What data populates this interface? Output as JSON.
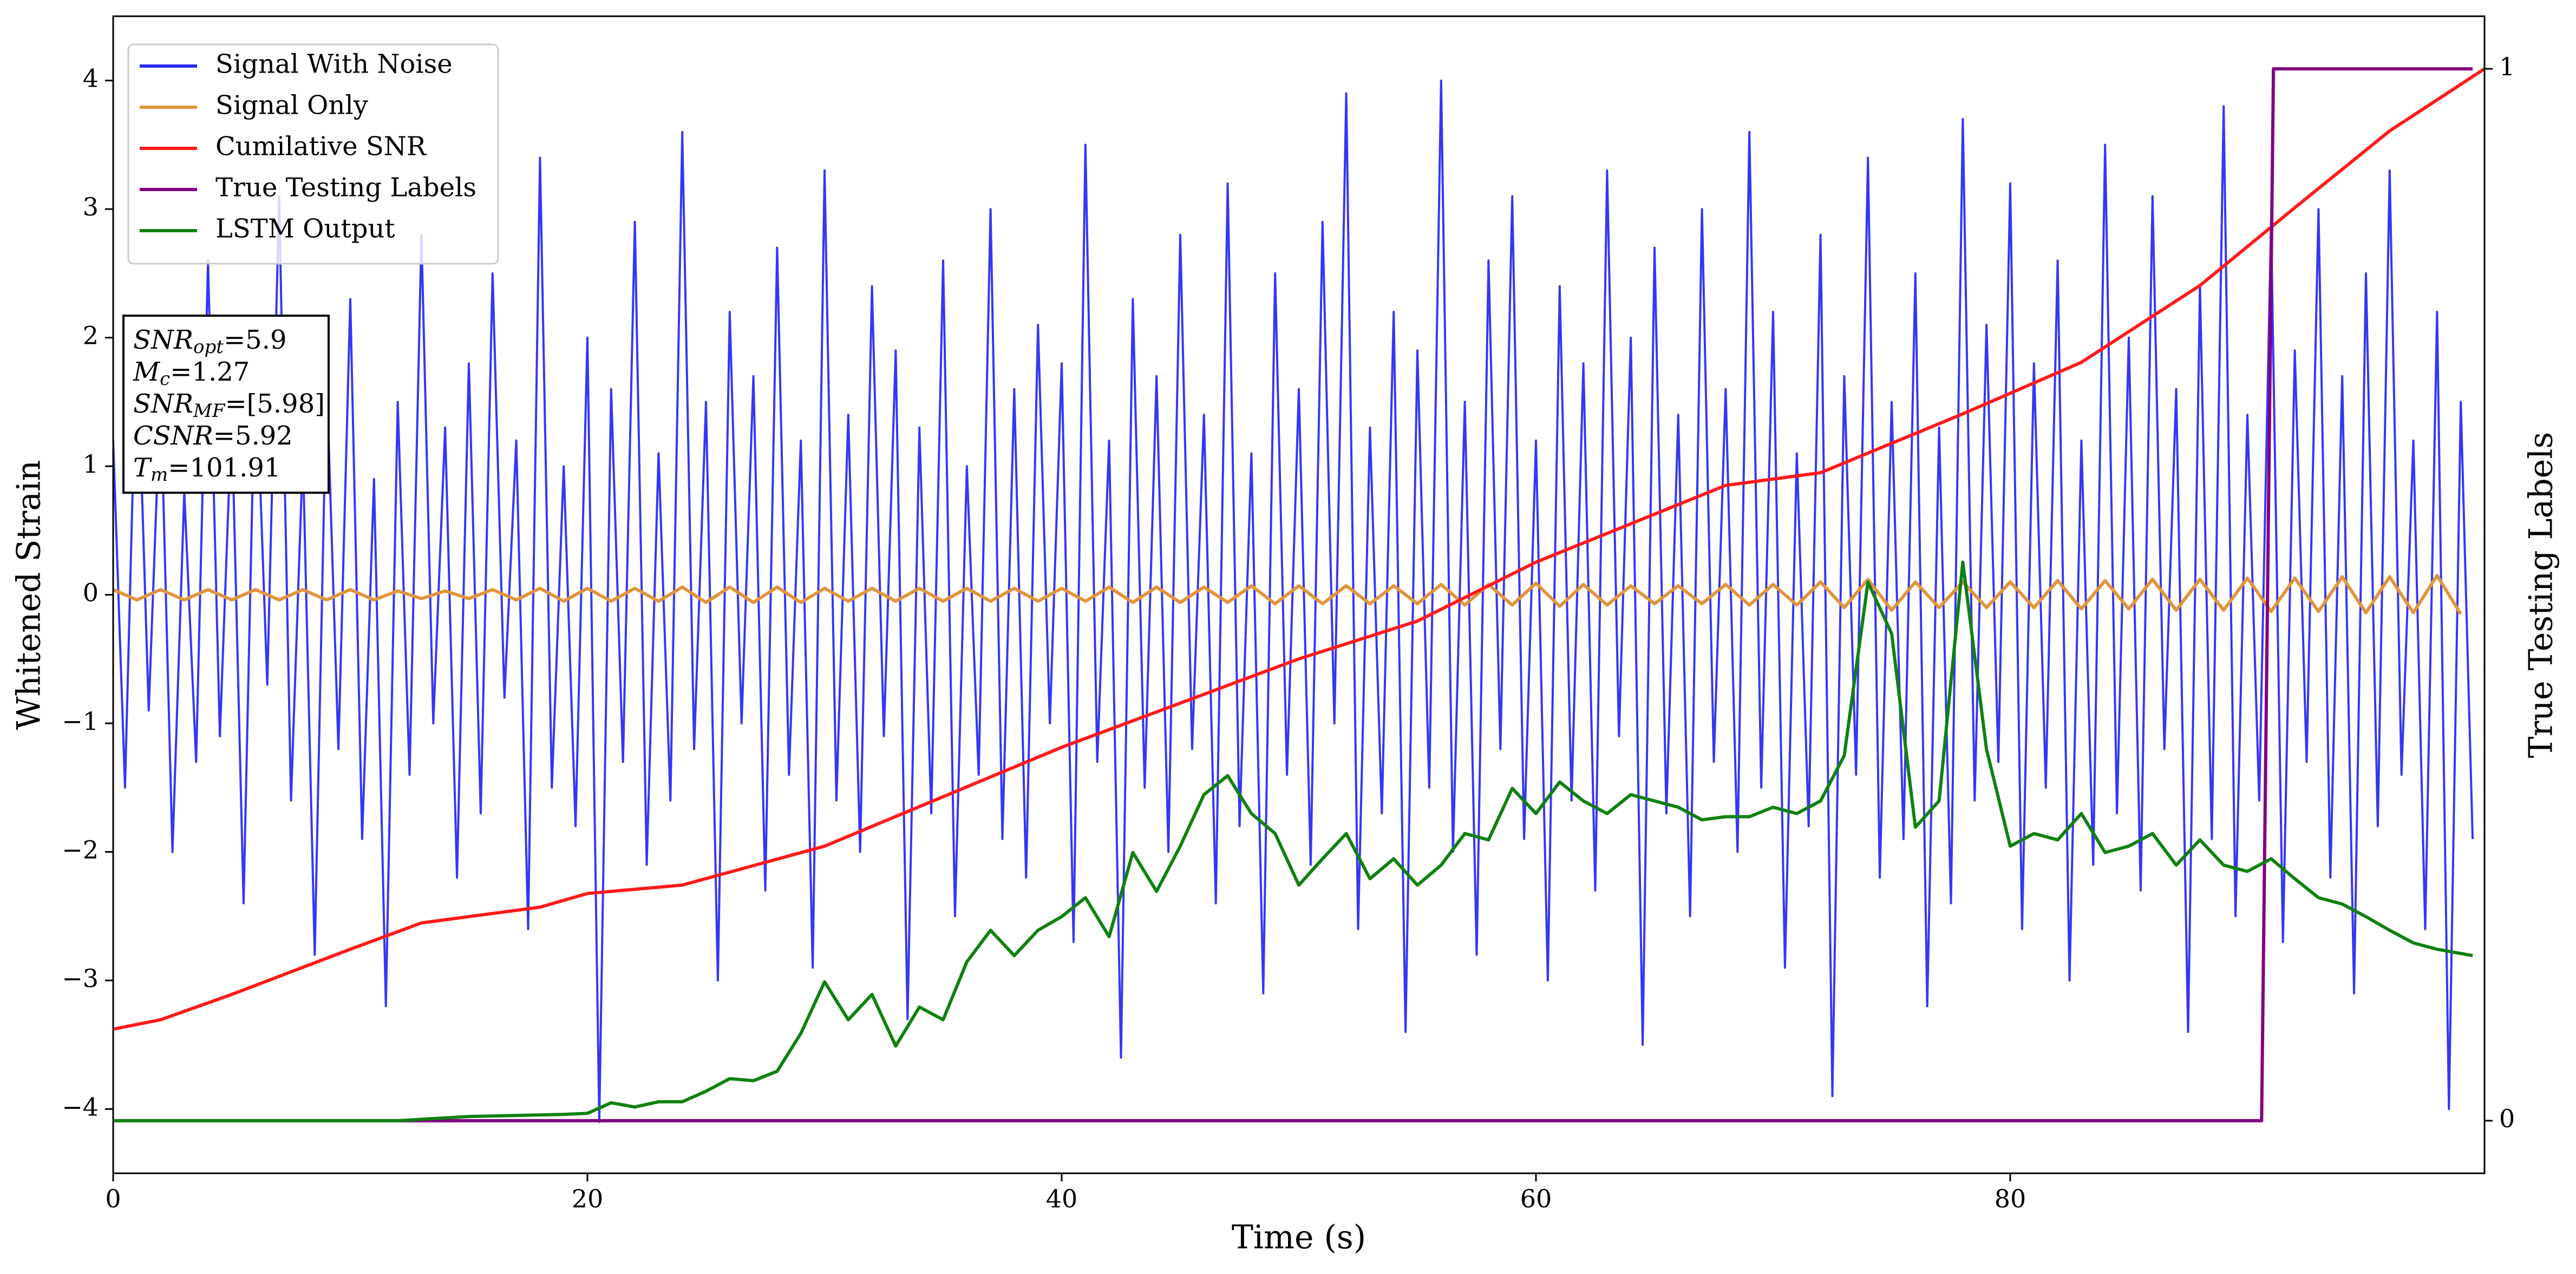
{
  "chart_data": {
    "type": "line",
    "xlabel": "Time (s)",
    "ylabel": "Whitened Strain",
    "y2label": "True Testing Labels",
    "xlim": [
      0,
      100
    ],
    "xticks": [
      0,
      20,
      40,
      60,
      80
    ],
    "ylim": [
      -4.5,
      4.5
    ],
    "yticks": [
      {
        "value": -4,
        "label": "−4"
      },
      {
        "value": -3,
        "label": "−3"
      },
      {
        "value": -2,
        "label": "−2"
      },
      {
        "value": -1,
        "label": "−1"
      },
      0,
      1,
      2,
      3,
      4
    ],
    "y2lim": [
      -0.05,
      1.05
    ],
    "y2ticks": [
      0,
      1
    ],
    "legend": "upper left",
    "annotations": [
      {
        "name": "SNR",
        "sub": "opt",
        "text": "=5.9"
      },
      {
        "name": "M",
        "sub": "c",
        "text": "=1.27"
      },
      {
        "name": "SNR",
        "sub": "MF",
        "text": "=[5.98]"
      },
      {
        "name": "CSNR",
        "text": "=5.92"
      },
      {
        "name": "T",
        "sub": "m",
        "text": "=101.91"
      }
    ],
    "series": [
      {
        "name": "Signal With Noise",
        "color": "#2b2bf5",
        "axis": "y",
        "x": [
          0,
          0.5,
          1,
          1.5,
          2,
          2.5,
          3,
          3.5,
          4,
          4.5,
          5,
          5.5,
          6,
          6.5,
          7,
          7.5,
          8,
          8.5,
          9,
          9.5,
          10,
          10.5,
          11,
          11.5,
          12,
          12.5,
          13,
          13.5,
          14,
          14.5,
          15,
          15.5,
          16,
          16.5,
          17,
          17.5,
          18,
          18.5,
          19,
          19.5,
          20,
          20.5,
          21,
          21.5,
          22,
          22.5,
          23,
          23.5,
          24,
          24.5,
          25,
          25.5,
          26,
          26.5,
          27,
          27.5,
          28,
          28.5,
          29,
          29.5,
          30,
          30.5,
          31,
          31.5,
          32,
          32.5,
          33,
          33.5,
          34,
          34.5,
          35,
          35.5,
          36,
          36.5,
          37,
          37.5,
          38,
          38.5,
          39,
          39.5,
          40,
          40.5,
          41,
          41.5,
          42,
          42.5,
          43,
          43.5,
          44,
          44.5,
          45,
          45.5,
          46,
          46.5,
          47,
          47.5,
          48,
          48.5,
          49,
          49.5,
          50,
          50.5,
          51,
          51.5,
          52,
          52.5,
          53,
          53.5,
          54,
          54.5,
          55,
          55.5,
          56,
          56.5,
          57,
          57.5,
          58,
          58.5,
          59,
          59.5,
          60,
          60.5,
          61,
          61.5,
          62,
          62.5,
          63,
          63.5,
          64,
          64.5,
          65,
          65.5,
          66,
          66.5,
          67,
          67.5,
          68,
          68.5,
          69,
          69.5,
          70,
          70.5,
          71,
          71.5,
          72,
          72.5,
          73,
          73.5,
          74,
          74.5,
          75,
          75.5,
          76,
          76.5,
          77,
          77.5,
          78,
          78.5,
          79,
          79.5,
          80,
          80.5,
          81,
          81.5,
          82,
          82.5,
          83,
          83.5,
          84,
          84.5,
          85,
          85.5,
          86,
          86.5,
          87,
          87.5,
          88,
          88.5,
          89,
          89.5,
          90,
          90.5,
          91,
          91.5,
          92,
          92.5,
          93,
          93.5,
          94,
          94.5,
          95,
          95.5,
          96,
          96.5,
          97,
          97.5,
          98,
          98.5,
          99,
          99.5
        ],
        "values": [
          1.2,
          -1.5,
          2.1,
          -0.9,
          1.6,
          -2.0,
          0.8,
          -1.3,
          2.6,
          -1.1,
          1.4,
          -2.4,
          1.9,
          -0.7,
          3.1,
          -1.6,
          1.1,
          -2.8,
          1.7,
          -1.2,
          2.3,
          -1.9,
          0.9,
          -3.2,
          1.5,
          -1.4,
          2.8,
          -1.0,
          1.3,
          -2.2,
          1.8,
          -1.7,
          2.5,
          -0.8,
          1.2,
          -2.6,
          3.4,
          -1.5,
          1.0,
          -1.8,
          2.0,
          -4.1,
          1.6,
          -1.3,
          2.9,
          -2.1,
          1.1,
          -1.6,
          3.6,
          -1.2,
          1.5,
          -3.0,
          2.2,
          -1.0,
          1.7,
          -2.3,
          2.7,
          -1.4,
          1.2,
          -2.9,
          3.3,
          -1.6,
          1.4,
          -2.0,
          2.4,
          -1.1,
          1.9,
          -3.3,
          1.3,
          -1.7,
          2.6,
          -2.5,
          1.0,
          -1.4,
          3.0,
          -1.9,
          1.6,
          -2.2,
          2.1,
          -1.0,
          1.8,
          -2.7,
          3.5,
          -1.3,
          1.2,
          -3.6,
          2.3,
          -1.5,
          1.7,
          -2.0,
          2.8,
          -1.2,
          1.4,
          -2.4,
          3.2,
          -1.8,
          1.1,
          -3.1,
          2.5,
          -1.4,
          1.6,
          -2.1,
          2.9,
          -1.0,
          3.9,
          -2.6,
          1.3,
          -1.7,
          2.2,
          -3.4,
          1.9,
          -1.5,
          4.0,
          -2.0,
          1.5,
          -2.8,
          2.6,
          -1.2,
          3.1,
          -1.9,
          1.2,
          -3.0,
          2.4,
          -1.6,
          1.8,
          -2.3,
          3.3,
          -1.1,
          2.0,
          -3.5,
          2.7,
          -1.7,
          1.4,
          -2.5,
          3.0,
          -1.3,
          1.6,
          -2.0,
          3.6,
          -1.5,
          2.2,
          -2.9,
          1.1,
          -1.8,
          2.8,
          -3.9,
          1.7,
          -1.4,
          3.4,
          -2.2,
          1.5,
          -1.9,
          2.5,
          -3.2,
          1.3,
          -2.4,
          3.7,
          -1.6,
          2.1,
          -1.3,
          3.2,
          -2.6,
          1.8,
          -1.5,
          2.6,
          -3.0,
          1.2,
          -2.1,
          3.5,
          -1.7,
          2.0,
          -2.3,
          3.1,
          -1.2,
          1.6,
          -3.4,
          2.4,
          -1.9,
          3.8,
          -2.5,
          1.4,
          -1.6,
          2.9,
          -2.7,
          1.9,
          -1.3,
          3.0,
          -2.2,
          1.7,
          -3.1,
          2.5,
          -1.8,
          3.3,
          -1.4,
          1.2,
          -2.6,
          2.2,
          -4.0,
          1.5,
          -1.9
        ]
      },
      {
        "name": "Signal Only",
        "color": "#e0953a",
        "axis": "y",
        "x": [
          0,
          1,
          2,
          3,
          4,
          5,
          6,
          7,
          8,
          9,
          10,
          11,
          12,
          13,
          14,
          15,
          16,
          17,
          18,
          19,
          20,
          21,
          22,
          23,
          24,
          25,
          26,
          27,
          28,
          29,
          30,
          31,
          32,
          33,
          34,
          35,
          36,
          37,
          38,
          39,
          40,
          41,
          42,
          43,
          44,
          45,
          46,
          47,
          48,
          49,
          50,
          51,
          52,
          53,
          54,
          55,
          56,
          57,
          58,
          59,
          60,
          61,
          62,
          63,
          64,
          65,
          66,
          67,
          68,
          69,
          70,
          71,
          72,
          73,
          74,
          75,
          76,
          77,
          78,
          79,
          80,
          81,
          82,
          83,
          84,
          85,
          86,
          87,
          88,
          89,
          90,
          91,
          92,
          93,
          94,
          95,
          96,
          97,
          98,
          99
        ],
        "values": [
          0.04,
          -0.04,
          0.04,
          -0.04,
          0.04,
          -0.04,
          0.04,
          -0.04,
          0.04,
          -0.04,
          0.04,
          -0.04,
          0.03,
          -0.03,
          0.03,
          -0.03,
          0.04,
          -0.04,
          0.05,
          -0.05,
          0.05,
          -0.05,
          0.05,
          -0.05,
          0.06,
          -0.06,
          0.06,
          -0.06,
          0.06,
          -0.06,
          0.05,
          -0.05,
          0.05,
          -0.05,
          0.05,
          -0.05,
          0.05,
          -0.05,
          0.05,
          -0.05,
          0.05,
          -0.05,
          0.06,
          -0.06,
          0.06,
          -0.06,
          0.06,
          -0.06,
          0.07,
          -0.07,
          0.07,
          -0.07,
          0.07,
          -0.07,
          0.07,
          -0.07,
          0.08,
          -0.08,
          0.08,
          -0.08,
          0.09,
          -0.09,
          0.08,
          -0.08,
          0.07,
          -0.07,
          0.07,
          -0.07,
          0.08,
          -0.08,
          0.08,
          -0.08,
          0.1,
          -0.1,
          0.12,
          -0.12,
          0.1,
          -0.1,
          0.1,
          -0.1,
          0.1,
          -0.1,
          0.11,
          -0.11,
          0.11,
          -0.11,
          0.12,
          -0.12,
          0.12,
          -0.12,
          0.13,
          -0.13,
          0.13,
          -0.13,
          0.14,
          -0.14,
          0.14,
          -0.14,
          0.15,
          -0.15
        ]
      },
      {
        "name": "Cumilative SNR",
        "color": "#ff1a1a",
        "axis": "y2",
        "x": [
          0,
          2,
          5,
          10,
          13,
          18,
          20,
          24,
          30,
          40,
          50,
          55,
          60,
          68,
          72,
          78,
          83,
          88,
          92,
          96,
          100
        ],
        "values": [
          0.087,
          0.096,
          0.12,
          0.163,
          0.188,
          0.203,
          0.216,
          0.224,
          0.261,
          0.355,
          0.439,
          0.475,
          0.531,
          0.604,
          0.616,
          0.672,
          0.721,
          0.794,
          0.868,
          0.941,
          1
        ]
      },
      {
        "name": "True Testing Labels",
        "color": "#800080",
        "axis": "y2",
        "x": [
          0,
          90.6,
          91.1,
          99.5
        ],
        "values": [
          0,
          0,
          1,
          1
        ]
      },
      {
        "name": "LSTM Output",
        "color": "#108010",
        "axis": "y2",
        "x": [
          0,
          12,
          15,
          19,
          20,
          21,
          22,
          23,
          24,
          25,
          26,
          27,
          28,
          29,
          30,
          31,
          32,
          33,
          34,
          35,
          36,
          37,
          38,
          39,
          40,
          41,
          42,
          43,
          44,
          45,
          46,
          47,
          48,
          49,
          50,
          51,
          52,
          53,
          54,
          55,
          56,
          57,
          58,
          59,
          60,
          61,
          62,
          63,
          64,
          65,
          66,
          67,
          68,
          69,
          70,
          71,
          72,
          73,
          74,
          75,
          76,
          77,
          78,
          79,
          80,
          81,
          82,
          83,
          84,
          85,
          86,
          87,
          88,
          89,
          90,
          91,
          92,
          93,
          94,
          95,
          96,
          97,
          98,
          99.5
        ],
        "values": [
          0,
          0,
          0.004,
          0.006,
          0.007,
          0.017,
          0.013,
          0.018,
          0.018,
          0.028,
          0.04,
          0.038,
          0.047,
          0.083,
          0.132,
          0.096,
          0.12,
          0.071,
          0.108,
          0.096,
          0.151,
          0.181,
          0.157,
          0.181,
          0.194,
          0.212,
          0.175,
          0.255,
          0.218,
          0.261,
          0.31,
          0.328,
          0.292,
          0.273,
          0.224,
          0.249,
          0.273,
          0.23,
          0.249,
          0.224,
          0.243,
          0.273,
          0.267,
          0.316,
          0.292,
          0.322,
          0.304,
          0.292,
          0.31,
          0.304,
          0.298,
          0.286,
          0.289,
          0.289,
          0.298,
          0.292,
          0.304,
          0.347,
          0.512,
          0.463,
          0.279,
          0.304,
          0.531,
          0.353,
          0.261,
          0.273,
          0.267,
          0.292,
          0.255,
          0.261,
          0.273,
          0.243,
          0.267,
          0.243,
          0.237,
          0.249,
          0.23,
          0.212,
          0.206,
          0.194,
          0.181,
          0.169,
          0.163,
          0.157
        ]
      }
    ]
  }
}
